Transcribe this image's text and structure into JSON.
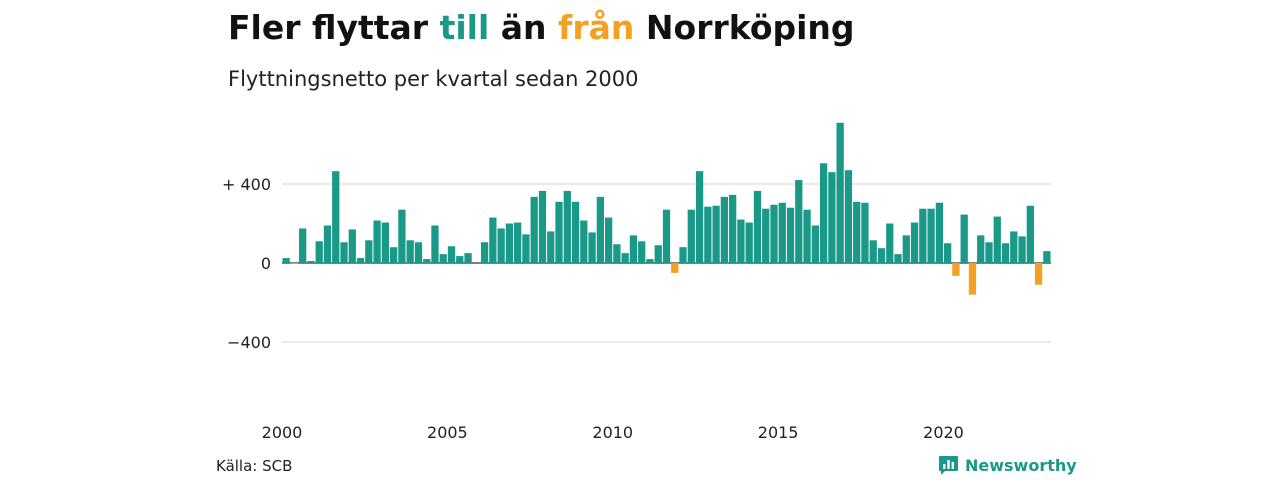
{
  "header": {
    "title_parts": [
      "Fler flyttar ",
      "till",
      " än ",
      "från",
      " Norrköping"
    ],
    "subtitle": "Flyttningsnetto per kvartal sedan 2000"
  },
  "footer": {
    "source": "Källa: SCB",
    "brand": "Newsworthy"
  },
  "colors": {
    "positive": "#1a9988",
    "negative": "#f2a122",
    "grid": "#dddddd"
  },
  "chart_data": {
    "type": "bar",
    "title": "Fler flyttar till än från Norrköping",
    "subtitle": "Flyttningsnetto per kvartal sedan 2000",
    "xlabel": "",
    "ylabel": "",
    "x_start": "2000 Q1",
    "x_ticks": [
      "2000",
      "2005",
      "2010",
      "2015",
      "2020"
    ],
    "y_ticks": [
      400,
      0,
      -400
    ],
    "y_tick_labels": [
      "+ 400",
      "0",
      "−400"
    ],
    "ylim": [
      -600,
      720
    ],
    "grid": true,
    "values": [
      25,
      -5,
      175,
      10,
      110,
      190,
      465,
      105,
      170,
      25,
      115,
      215,
      205,
      80,
      270,
      115,
      105,
      20,
      190,
      45,
      85,
      35,
      50,
      0,
      105,
      230,
      175,
      200,
      205,
      145,
      335,
      365,
      160,
      310,
      365,
      310,
      215,
      155,
      335,
      230,
      95,
      50,
      140,
      110,
      20,
      90,
      270,
      -50,
      80,
      270,
      465,
      285,
      290,
      335,
      345,
      220,
      205,
      365,
      275,
      295,
      305,
      280,
      420,
      270,
      190,
      505,
      460,
      710,
      470,
      310,
      305,
      115,
      75,
      200,
      45,
      140,
      205,
      275,
      275,
      305,
      100,
      -65,
      245,
      -160,
      140,
      105,
      235,
      100,
      160,
      135,
      290,
      -110,
      60
    ]
  }
}
